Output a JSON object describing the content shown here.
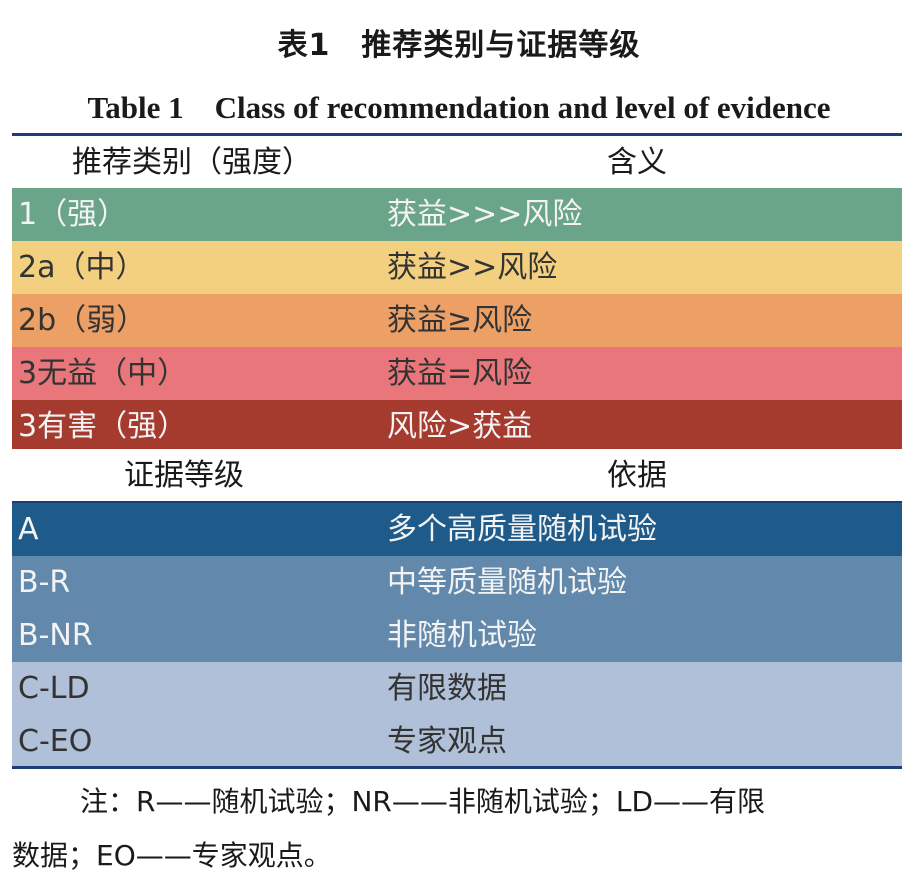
{
  "title_cn": "表1　推荐类别与证据等级",
  "title_en": "Table 1　Class of recommendation and level of evidence",
  "rec_header": [
    "推荐类别（强度）",
    "含义"
  ],
  "rec_rows": [
    {
      "class": "1（强）",
      "meaning": "获益>>>风险",
      "color": "#6aa58a"
    },
    {
      "class": "2a（中）",
      "meaning": "获益>>风险",
      "color": "#f3cf80"
    },
    {
      "class": "2b（弱）",
      "meaning": "获益≥风险",
      "color": "#eca065"
    },
    {
      "class": "3无益（中）",
      "meaning": "获益=风险",
      "color": "#e8767a"
    },
    {
      "class": "3有害（强）",
      "meaning": "风险>获益",
      "color": "#a53b2e"
    }
  ],
  "evi_header": [
    "证据等级",
    "依据"
  ],
  "evi_rows": [
    {
      "level": "A",
      "basis": "多个高质量随机试验",
      "color": "#1f5b8a"
    },
    {
      "level": "B-R",
      "basis": "中等质量随机试验",
      "color": "#6289ab"
    },
    {
      "level": "B-NR",
      "basis": "非随机试验",
      "color": "#6289ab"
    },
    {
      "level": "C-LD",
      "basis": "有限数据",
      "color": "#b0c0d8"
    },
    {
      "level": "C-EO",
      "basis": "专家观点",
      "color": "#b0c0d8"
    }
  ],
  "note_line1": "注：R——随机试验；NR——非随机试验；LD——有限",
  "note_line2": "数据；EO——专家观点。"
}
